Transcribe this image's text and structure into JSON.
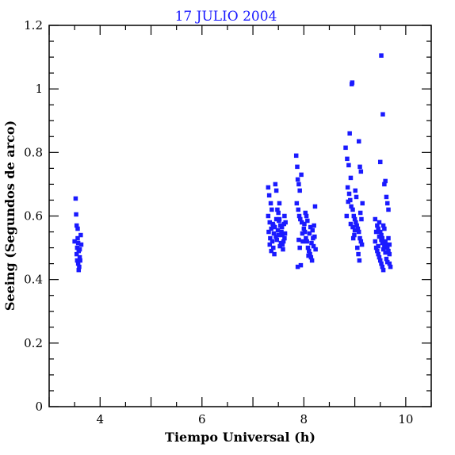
{
  "chart_data": {
    "type": "scatter",
    "title": "17 JULIO 2004",
    "xlabel": "Tiempo Universal (h)",
    "ylabel": "Seeing (Segundos de arco)",
    "xlim": [
      3.0,
      10.5
    ],
    "ylim": [
      0,
      1.2
    ],
    "xticks": [
      "4",
      "6",
      "8",
      "10"
    ],
    "yticks": [
      "0",
      "0.2",
      "0.4",
      "0.6",
      "0.8",
      "1",
      "1.2"
    ],
    "grid": false,
    "marker_color": "#1a1aff",
    "series": [
      {
        "values": [
          [
            3.52,
            0.655
          ],
          [
            3.53,
            0.605
          ],
          [
            3.54,
            0.57
          ],
          [
            3.5,
            0.52
          ],
          [
            3.55,
            0.5
          ],
          [
            3.58,
            0.49
          ],
          [
            3.6,
            0.47
          ],
          [
            3.56,
            0.53
          ],
          [
            3.62,
            0.54
          ],
          [
            3.57,
            0.45
          ],
          [
            3.59,
            0.44
          ],
          [
            3.61,
            0.46
          ],
          [
            3.54,
            0.48
          ],
          [
            3.63,
            0.51
          ],
          [
            3.56,
            0.56
          ],
          [
            3.58,
            0.43
          ],
          [
            3.6,
            0.495
          ],
          [
            3.55,
            0.46
          ],
          [
            3.57,
            0.515
          ],
          [
            7.3,
            0.69
          ],
          [
            7.32,
            0.665
          ],
          [
            7.35,
            0.64
          ],
          [
            7.3,
            0.6
          ],
          [
            7.33,
            0.58
          ],
          [
            7.36,
            0.56
          ],
          [
            7.31,
            0.55
          ],
          [
            7.34,
            0.53
          ],
          [
            7.38,
            0.52
          ],
          [
            7.4,
            0.5
          ],
          [
            7.42,
            0.48
          ],
          [
            7.44,
            0.7
          ],
          [
            7.46,
            0.68
          ],
          [
            7.48,
            0.62
          ],
          [
            7.5,
            0.61
          ],
          [
            7.52,
            0.59
          ],
          [
            7.54,
            0.57
          ],
          [
            7.56,
            0.55
          ],
          [
            7.58,
            0.54
          ],
          [
            7.6,
            0.52
          ],
          [
            7.62,
            0.6
          ],
          [
            7.64,
            0.58
          ],
          [
            7.36,
            0.49
          ],
          [
            7.39,
            0.575
          ],
          [
            7.41,
            0.545
          ],
          [
            7.43,
            0.565
          ],
          [
            7.45,
            0.535
          ],
          [
            7.47,
            0.525
          ],
          [
            7.49,
            0.555
          ],
          [
            7.51,
            0.585
          ],
          [
            7.53,
            0.505
          ],
          [
            7.55,
            0.515
          ],
          [
            7.57,
            0.565
          ],
          [
            7.59,
            0.495
          ],
          [
            7.61,
            0.575
          ],
          [
            7.63,
            0.545
          ],
          [
            7.33,
            0.51
          ],
          [
            7.37,
            0.62
          ],
          [
            7.52,
            0.64
          ],
          [
            7.58,
            0.51
          ],
          [
            7.4,
            0.57
          ],
          [
            7.46,
            0.59
          ],
          [
            7.5,
            0.54
          ],
          [
            7.62,
            0.53
          ],
          [
            7.85,
            0.79
          ],
          [
            7.87,
            0.755
          ],
          [
            7.88,
            0.715
          ],
          [
            7.9,
            0.7
          ],
          [
            7.92,
            0.68
          ],
          [
            7.95,
            0.73
          ],
          [
            7.86,
            0.64
          ],
          [
            7.89,
            0.62
          ],
          [
            7.91,
            0.6
          ],
          [
            7.93,
            0.59
          ],
          [
            7.96,
            0.58
          ],
          [
            8.0,
            0.56
          ],
          [
            8.02,
            0.55
          ],
          [
            8.04,
            0.53
          ],
          [
            8.06,
            0.52
          ],
          [
            8.08,
            0.5
          ],
          [
            8.1,
            0.49
          ],
          [
            8.12,
            0.48
          ],
          [
            8.14,
            0.47
          ],
          [
            8.16,
            0.46
          ],
          [
            8.18,
            0.53
          ],
          [
            8.2,
            0.57
          ],
          [
            8.22,
            0.63
          ],
          [
            7.88,
            0.44
          ],
          [
            7.94,
            0.445
          ],
          [
            7.98,
            0.52
          ],
          [
            8.03,
            0.61
          ],
          [
            8.07,
            0.585
          ],
          [
            8.11,
            0.545
          ],
          [
            8.15,
            0.515
          ],
          [
            8.19,
            0.505
          ],
          [
            8.23,
            0.495
          ],
          [
            7.9,
            0.525
          ],
          [
            7.97,
            0.545
          ],
          [
            8.01,
            0.575
          ],
          [
            8.05,
            0.6
          ],
          [
            8.09,
            0.475
          ],
          [
            8.13,
            0.565
          ],
          [
            8.17,
            0.555
          ],
          [
            8.21,
            0.535
          ],
          [
            7.92,
            0.5
          ],
          [
            8.82,
            0.815
          ],
          [
            8.85,
            0.78
          ],
          [
            8.88,
            0.76
          ],
          [
            8.9,
            0.86
          ],
          [
            8.92,
            0.72
          ],
          [
            8.94,
            1.015
          ],
          [
            8.95,
            1.02
          ],
          [
            8.86,
            0.69
          ],
          [
            8.89,
            0.67
          ],
          [
            8.91,
            0.65
          ],
          [
            8.93,
            0.63
          ],
          [
            8.96,
            0.62
          ],
          [
            8.98,
            0.6
          ],
          [
            9.0,
            0.59
          ],
          [
            9.02,
            0.58
          ],
          [
            9.04,
            0.57
          ],
          [
            9.06,
            0.56
          ],
          [
            9.08,
            0.55
          ],
          [
            9.1,
            0.53
          ],
          [
            9.12,
            0.52
          ],
          [
            9.14,
            0.51
          ],
          [
            9.08,
            0.835
          ],
          [
            9.1,
            0.755
          ],
          [
            9.12,
            0.74
          ],
          [
            8.84,
            0.6
          ],
          [
            8.87,
            0.645
          ],
          [
            8.97,
            0.53
          ],
          [
            8.99,
            0.54
          ],
          [
            9.01,
            0.68
          ],
          [
            9.03,
            0.66
          ],
          [
            9.05,
            0.5
          ],
          [
            9.07,
            0.48
          ],
          [
            9.09,
            0.46
          ],
          [
            9.11,
            0.61
          ],
          [
            9.13,
            0.59
          ],
          [
            9.15,
            0.64
          ],
          [
            8.92,
            0.575
          ],
          [
            8.96,
            0.565
          ],
          [
            9.0,
            0.555
          ],
          [
            9.4,
            0.52
          ],
          [
            9.42,
            0.5
          ],
          [
            9.44,
            0.49
          ],
          [
            9.46,
            0.48
          ],
          [
            9.48,
            0.47
          ],
          [
            9.5,
            0.46
          ],
          [
            9.52,
            0.45
          ],
          [
            9.54,
            0.44
          ],
          [
            9.56,
            0.43
          ],
          [
            9.58,
            0.7
          ],
          [
            9.6,
            0.71
          ],
          [
            9.62,
            0.66
          ],
          [
            9.64,
            0.64
          ],
          [
            9.66,
            0.62
          ],
          [
            9.68,
            0.51
          ],
          [
            9.52,
            1.105
          ],
          [
            9.55,
            0.92
          ],
          [
            9.5,
            0.77
          ],
          [
            9.46,
            0.56
          ],
          [
            9.48,
            0.58
          ],
          [
            9.5,
            0.55
          ],
          [
            9.52,
            0.54
          ],
          [
            9.54,
            0.53
          ],
          [
            9.56,
            0.57
          ],
          [
            9.58,
            0.56
          ],
          [
            9.6,
            0.52
          ],
          [
            9.62,
            0.51
          ],
          [
            9.64,
            0.5
          ],
          [
            9.66,
            0.49
          ],
          [
            9.68,
            0.48
          ],
          [
            9.42,
            0.55
          ],
          [
            9.44,
            0.57
          ],
          [
            9.4,
            0.59
          ],
          [
            9.7,
            0.44
          ],
          [
            9.68,
            0.45
          ],
          [
            9.66,
            0.53
          ],
          [
            9.58,
            0.505
          ],
          [
            9.6,
            0.485
          ],
          [
            9.62,
            0.465
          ],
          [
            9.64,
            0.455
          ],
          [
            9.56,
            0.495
          ],
          [
            9.54,
            0.515
          ],
          [
            9.52,
            0.525
          ],
          [
            9.48,
            0.535
          ],
          [
            9.46,
            0.505
          ]
        ]
      }
    ]
  }
}
